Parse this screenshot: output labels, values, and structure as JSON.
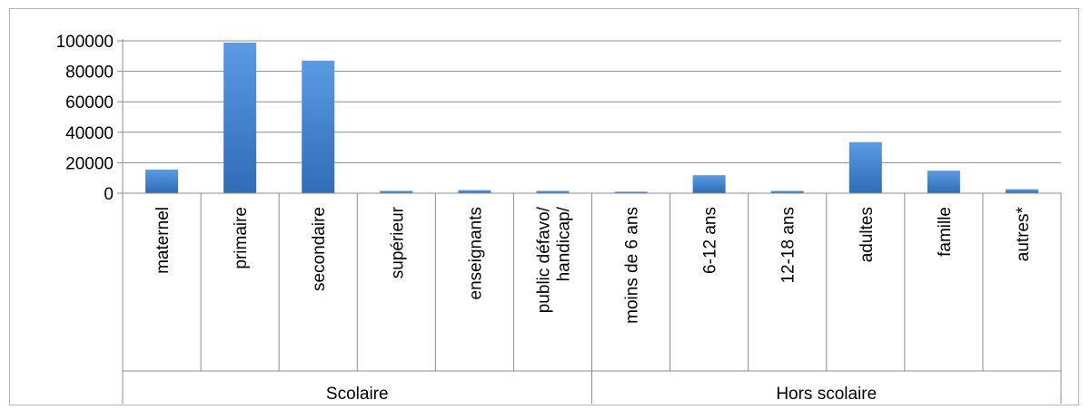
{
  "chart_data": {
    "type": "bar",
    "categories": [
      [
        "maternel"
      ],
      [
        "primaire"
      ],
      [
        "secondaire"
      ],
      [
        "supérieur"
      ],
      [
        "enseignants"
      ],
      [
        "public défavo/",
        "handicap/"
      ],
      [
        "moins de 6 ans"
      ],
      [
        "6-12 ans"
      ],
      [
        "12-18 ans"
      ],
      [
        "adultes"
      ],
      [
        "famille"
      ],
      [
        "autres*"
      ]
    ],
    "groups": [
      {
        "label": "Scolaire",
        "count": 6
      },
      {
        "label": "Hors scolaire",
        "count": 6
      }
    ],
    "values": [
      15500,
      98800,
      87000,
      1500,
      2000,
      1500,
      1000,
      11800,
      1500,
      33500,
      14800,
      2600
    ],
    "yticks": [
      "0",
      "20000",
      "40000",
      "60000",
      "80000",
      "100000"
    ],
    "ylim": [
      0,
      100000
    ],
    "grid": true,
    "legend": "none",
    "colors": {
      "bar_light": "#5a9be3",
      "bar_dark": "#2f6db5",
      "grid": "#8c8c8c",
      "axis": "#8c8c8c"
    }
  }
}
